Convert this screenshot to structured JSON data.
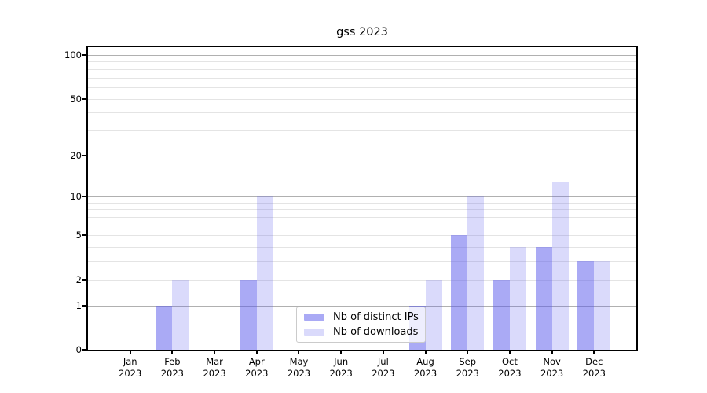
{
  "title": "gss 2023",
  "chart_data": {
    "type": "bar",
    "title": "gss 2023",
    "x_categories": [
      "Jan 2023",
      "Feb 2023",
      "Mar 2023",
      "Apr 2023",
      "May 2023",
      "Jun 2023",
      "Jul 2023",
      "Aug 2023",
      "Sep 2023",
      "Oct 2023",
      "Nov 2023",
      "Dec 2023"
    ],
    "x_months": [
      "Jan",
      "Feb",
      "Mar",
      "Apr",
      "May",
      "Jun",
      "Jul",
      "Aug",
      "Sep",
      "Oct",
      "Nov",
      "Dec"
    ],
    "x_year": "2023",
    "series": [
      {
        "name": "Nb of distinct IPs",
        "color": "rgba(85,85,235,0.5)",
        "values": [
          0,
          1,
          0,
          2,
          0,
          0,
          0,
          1,
          5,
          2,
          4,
          3
        ]
      },
      {
        "name": "Nb of downloads",
        "color": "rgba(85,85,235,0.22)",
        "values": [
          0,
          2,
          0,
          10,
          0,
          0,
          0,
          2,
          10,
          4,
          13,
          3
        ]
      }
    ],
    "xlabel": "",
    "ylabel": "",
    "y_scale": "log1p",
    "ylim": [
      0,
      100
    ],
    "y_ticks": [
      0,
      1,
      2,
      5,
      10,
      20,
      50,
      100
    ],
    "y_tick_labels": [
      "0",
      "1",
      "2",
      "5",
      "10",
      "20",
      "50",
      "100"
    ],
    "y_major_grid": [
      1,
      10,
      100
    ],
    "y_minor_grid": [
      2,
      3,
      4,
      5,
      6,
      7,
      8,
      9,
      20,
      30,
      40,
      50,
      60,
      70,
      80,
      90
    ],
    "grid": true,
    "legend_position": "lower center"
  },
  "colors": {
    "bar_distinct_ips": "rgba(85,85,235,0.5)",
    "bar_downloads": "rgba(85,85,235,0.22)",
    "grid_major": "#b0b0b0",
    "grid_minor": "#e4e4e4",
    "spine": "#000000",
    "background": "#ffffff"
  }
}
